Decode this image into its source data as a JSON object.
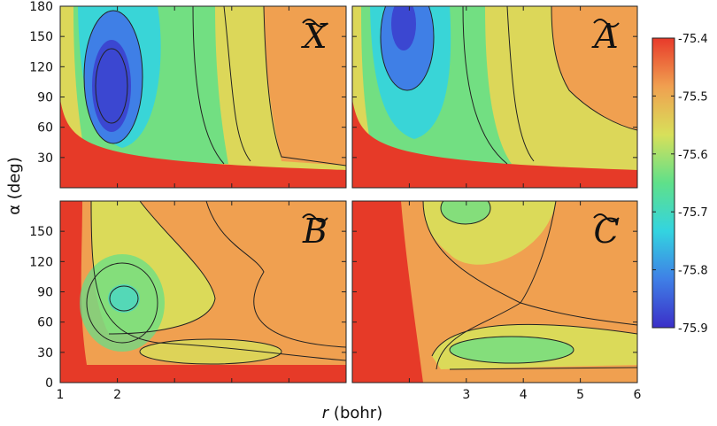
{
  "chart_data": {
    "type": "heatmap",
    "xlabel_var": "r",
    "xlabel_unit": "(bohr)",
    "ylabel": "α (deg)",
    "x_ticks": [
      "1",
      "2",
      "3",
      "4",
      "5",
      "6"
    ],
    "y_ticks": [
      "0",
      "30",
      "60",
      "90",
      "120",
      "150",
      "180"
    ],
    "xlim": [
      1,
      6
    ],
    "ylim": [
      0,
      180
    ],
    "colorbar": {
      "ticks": [
        "-75.4",
        "-75.5",
        "-75.6",
        "-75.7",
        "-75.8",
        "-75.9"
      ],
      "range": [
        -75.9,
        -75.4
      ],
      "colors": [
        "#3b2fc8",
        "#3f7fe6",
        "#33d4e0",
        "#5fe08a",
        "#d8e05a",
        "#f0a050",
        "#e83a2a"
      ]
    },
    "panels": [
      {
        "label": "X",
        "minimum": {
          "r": 1.9,
          "alpha": 115,
          "value": -75.87
        }
      },
      {
        "label": "A",
        "minimum": {
          "r": 1.9,
          "alpha": 150,
          "value": -75.84
        }
      },
      {
        "label": "B",
        "minimum": {
          "r": 2.1,
          "alpha": 82,
          "value": -75.62
        }
      },
      {
        "label": "C",
        "minimum": {
          "r": 3.5,
          "alpha": 35,
          "value": -75.6
        }
      }
    ]
  }
}
